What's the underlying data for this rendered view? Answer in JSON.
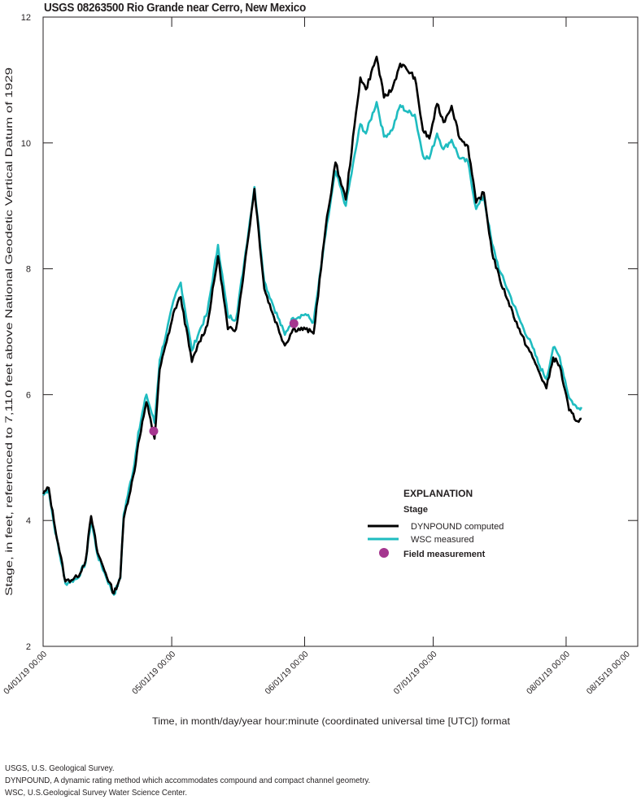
{
  "title": "USGS 08263500 Rio Grande near Cerro, New Mexico",
  "colors": {
    "dynpound": "#000000",
    "wsc": "#1fbcc0",
    "field": "#a5368f",
    "axis": "#231f20"
  },
  "footnotes": [
    "USGS, U.S. Geological Survey.",
    "DYNPOUND, A dynamic rating method which accommodates compound and compact channel geometry.",
    "WSC, U.S.Geological Survey Water Science Center."
  ],
  "legend": {
    "title": "EXPLANATION",
    "group": "Stage",
    "items": [
      {
        "label": "DYNPOUND computed",
        "type": "line",
        "color": "#000000"
      },
      {
        "label": "WSC measured",
        "type": "line",
        "color": "#1fbcc0"
      },
      {
        "label": "Field measurement",
        "type": "marker",
        "color": "#a5368f"
      }
    ]
  },
  "chart_data": {
    "type": "line",
    "title": "USGS 08263500 Rio Grande near Cerro, New Mexico",
    "xlabel": "Time, in month/day/year hour:minute (coordinated universal time [UTC]) format",
    "ylabel": "Stage, in feet, referenced to 7,110 feet above National Geodetic Vertical Datum of 1929",
    "ylim": [
      2,
      12
    ],
    "yticks": [
      2,
      4,
      6,
      8,
      10,
      12
    ],
    "xlim_days_from_start": [
      0,
      136
    ],
    "xticks": [
      {
        "label": "04/01/19 00:00",
        "day": 0
      },
      {
        "label": "05/01/19 00:00",
        "day": 30
      },
      {
        "label": "06/01/19 00:00",
        "day": 61
      },
      {
        "label": "07/01/19 00:00",
        "day": 91
      },
      {
        "label": "08/01/19 00:00",
        "day": 122
      },
      {
        "label": "08/15/19 00:00",
        "day": 136
      }
    ],
    "grid": false,
    "legend_position": "lower right (inside plot)",
    "x_units": "days since 04/01/19 00:00",
    "series": [
      {
        "name": "DYNPOUND computed",
        "color": "#000000",
        "x": [
          0,
          1.3,
          2.5,
          5.2,
          8.0,
          9.9,
          11.2,
          12.7,
          14.6,
          16.5,
          18.0,
          18.8,
          21.3,
          22.2,
          24.1,
          26.0,
          27.2,
          28.8,
          30.7,
          32.1,
          34.7,
          36.4,
          38.3,
          40.8,
          43.1,
          45.0,
          46.9,
          49.3,
          51.6,
          53.5,
          56.4,
          58.3,
          61.2,
          63.1,
          65.9,
          68.2,
          70.6,
          74.0,
          75.3,
          77.8,
          79.5,
          81.4,
          83.3,
          84.8,
          86.7,
          88.6,
          90.1,
          91.9,
          93.4,
          95.3,
          97.2,
          99.1,
          101.0,
          102.8,
          104.7,
          106.6,
          108.5,
          111.4,
          114.2,
          115.5,
          117.4,
          119.0,
          120.5,
          122.7,
          124.6,
          125.6
        ],
        "values": [
          4.42,
          4.52,
          4.0,
          3.03,
          3.1,
          3.36,
          4.07,
          3.49,
          3.16,
          2.84,
          3.1,
          4.03,
          4.78,
          5.23,
          5.88,
          5.3,
          6.4,
          6.84,
          7.36,
          7.55,
          6.52,
          6.84,
          7.1,
          8.2,
          7.04,
          7.04,
          8.0,
          9.27,
          7.68,
          7.3,
          6.78,
          7.04,
          7.04,
          6.97,
          8.65,
          9.69,
          9.1,
          11.04,
          10.85,
          11.37,
          10.72,
          10.85,
          11.26,
          11.17,
          11.04,
          10.2,
          10.07,
          10.62,
          10.33,
          10.59,
          10.07,
          9.95,
          9.05,
          9.21,
          8.27,
          7.81,
          7.49,
          6.97,
          6.59,
          6.39,
          6.1,
          6.59,
          6.46,
          5.75,
          5.58,
          5.62
        ]
      },
      {
        "name": "WSC measured",
        "color": "#1fbcc0",
        "x": [
          0,
          1.3,
          2.5,
          5.2,
          8.0,
          9.9,
          11.2,
          12.7,
          14.6,
          16.5,
          18.0,
          18.8,
          21.3,
          22.2,
          24.1,
          26.0,
          27.2,
          28.8,
          30.7,
          32.1,
          34.7,
          36.4,
          38.3,
          40.8,
          43.1,
          45.0,
          46.9,
          49.3,
          51.6,
          53.5,
          56.4,
          58.3,
          61.2,
          63.1,
          65.9,
          68.2,
          70.6,
          74.0,
          75.3,
          77.8,
          79.5,
          81.4,
          83.3,
          84.8,
          86.7,
          88.6,
          90.1,
          91.9,
          93.4,
          95.3,
          97.2,
          99.1,
          101.0,
          102.8,
          104.7,
          106.6,
          108.5,
          111.4,
          114.2,
          115.5,
          117.4,
          119.0,
          120.5,
          122.7,
          124.6,
          125.6
        ],
        "values": [
          4.4,
          4.5,
          3.95,
          3.0,
          3.08,
          3.33,
          4.02,
          3.45,
          3.12,
          2.82,
          3.08,
          4.1,
          4.9,
          5.4,
          6.0,
          5.55,
          6.55,
          7.0,
          7.55,
          7.78,
          6.7,
          7.0,
          7.3,
          8.38,
          7.25,
          7.2,
          8.1,
          9.3,
          7.8,
          7.45,
          6.95,
          7.22,
          7.28,
          7.15,
          8.55,
          9.55,
          9.0,
          10.3,
          10.15,
          10.65,
          10.1,
          10.2,
          10.6,
          10.5,
          10.45,
          9.8,
          9.75,
          10.15,
          9.9,
          10.05,
          9.75,
          9.7,
          8.95,
          9.15,
          8.4,
          7.95,
          7.65,
          7.15,
          6.75,
          6.5,
          6.25,
          6.75,
          6.6,
          5.95,
          5.78,
          5.8
        ]
      }
    ],
    "field_measurements": {
      "name": "Field measurement",
      "color": "#a5368f",
      "x": [
        25.8,
        58.5
      ],
      "values": [
        5.42,
        7.13
      ]
    }
  },
  "axes": {
    "yticks": [
      "2",
      "4",
      "6",
      "8",
      "10",
      "12"
    ],
    "xticks": [
      "04/01/19 00:00",
      "05/01/19 00:00",
      "06/01/19 00:00",
      "07/01/19 00:00",
      "08/01/19 00:00",
      "08/15/19 00:00"
    ],
    "xlabel": "Time, in month/day/year hour:minute (coordinated universal time [UTC]) format",
    "ylabel": "Stage, in feet, referenced to 7,110 feet above National Geodetic Vertical Datum of 1929"
  }
}
